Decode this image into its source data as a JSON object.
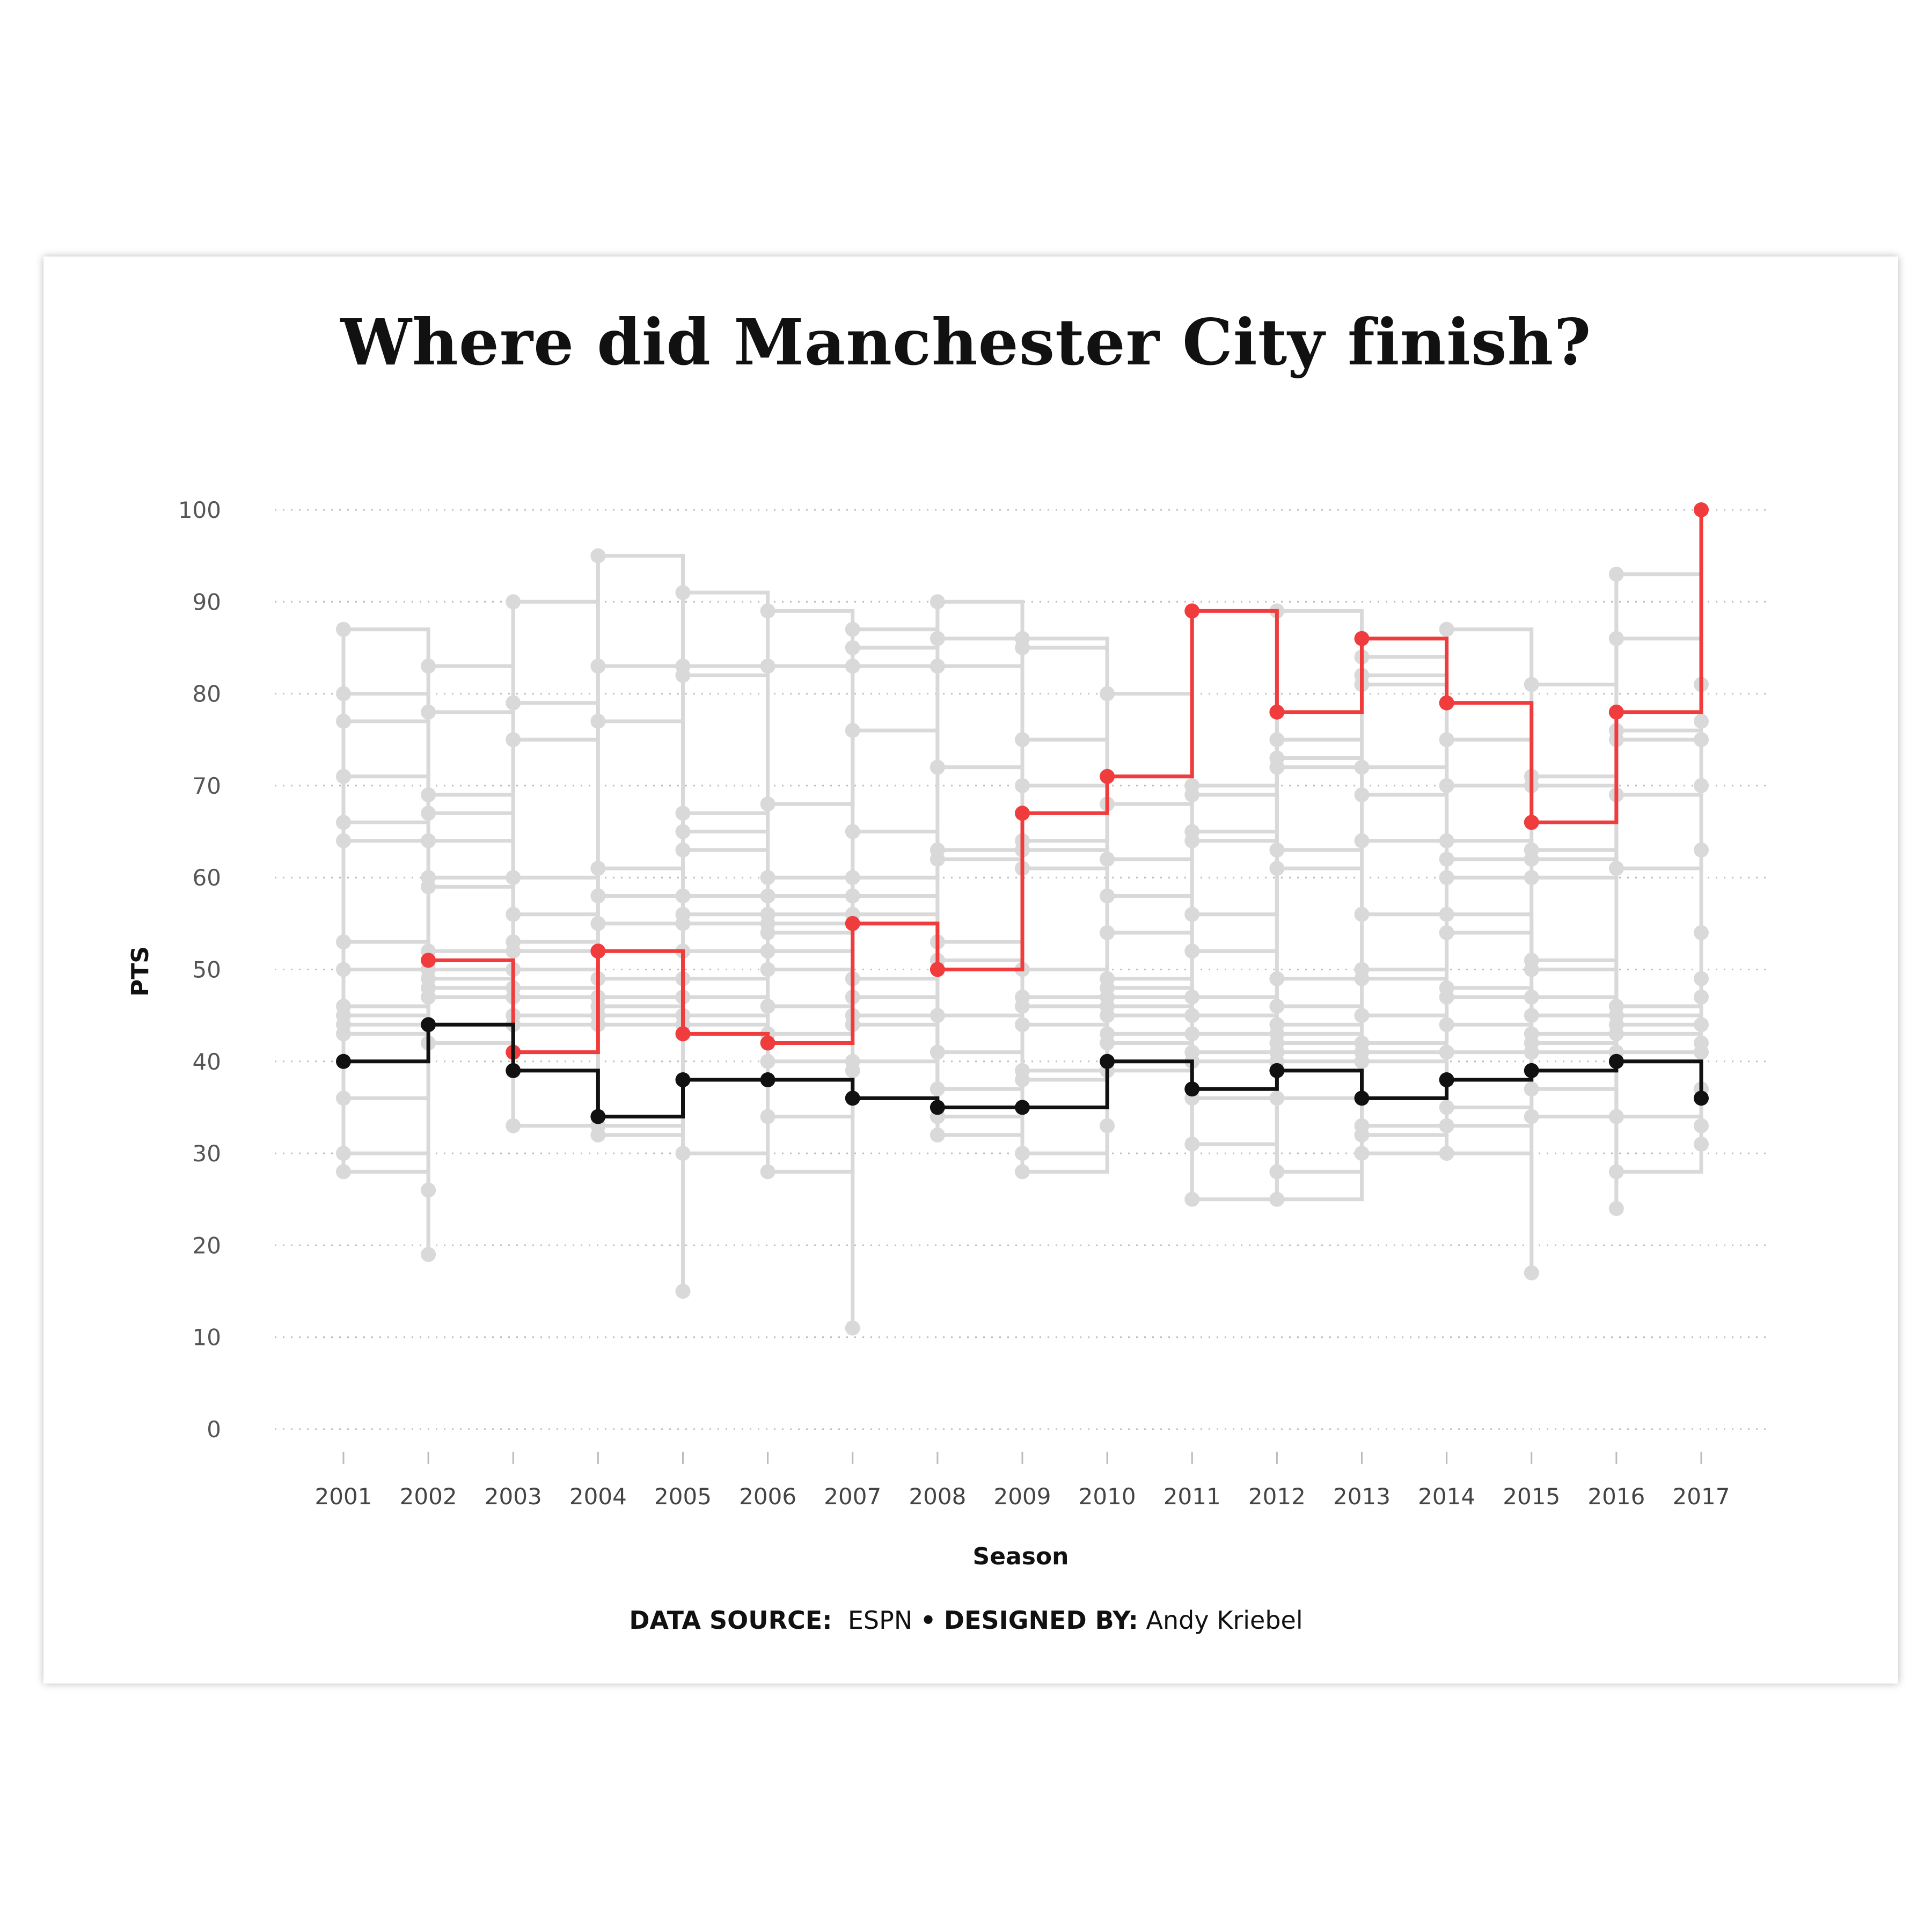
{
  "footer": {
    "source_label": "DATA SOURCE:",
    "source_value": "ESPN",
    "separator": "•",
    "designer_label": "DESIGNED BY:",
    "designer_value": "Andy Kriebel"
  },
  "chart_data": {
    "type": "line",
    "step": true,
    "title": "Where did Manchester City finish?",
    "xlabel": "Season",
    "ylabel": "PTS",
    "ylim": [
      0,
      100
    ],
    "yticks": [
      0,
      10,
      20,
      30,
      40,
      50,
      60,
      70,
      80,
      90,
      100
    ],
    "grid": "horizontal-dotted",
    "x": [
      2001,
      2002,
      2003,
      2004,
      2005,
      2006,
      2007,
      2008,
      2009,
      2010,
      2011,
      2012,
      2013,
      2014,
      2015,
      2016,
      2017
    ],
    "colors": {
      "highlight": "#f03c3c",
      "baseline": "#111111",
      "other": "#d9d9d9"
    },
    "series": [
      {
        "values": [
          null,
          51,
          41,
          52,
          43,
          42,
          55,
          50,
          67,
          71,
          89,
          78,
          86,
          79,
          66,
          78,
          100
        ],
        "color": "#f03c3c"
      },
      {
        "values": [
          40,
          44,
          39,
          34,
          38,
          38,
          36,
          35,
          35,
          40,
          37,
          39,
          36,
          38,
          39,
          40,
          36
        ],
        "color": "#111111"
      }
    ],
    "other_points": [
      [
        87,
        80,
        77,
        71,
        66,
        64,
        53,
        50,
        46,
        45,
        44,
        43,
        36,
        30,
        28
      ],
      [
        83,
        78,
        69,
        67,
        64,
        60,
        59,
        52,
        50,
        49,
        48,
        47,
        42,
        26,
        19
      ],
      [
        90,
        79,
        75,
        60,
        56,
        53,
        52,
        50,
        48,
        47,
        45,
        44,
        33
      ],
      [
        95,
        83,
        77,
        61,
        58,
        55,
        52,
        49,
        47,
        46,
        45,
        44,
        33,
        32
      ],
      [
        91,
        83,
        82,
        67,
        65,
        63,
        58,
        56,
        55,
        52,
        49,
        47,
        45,
        44,
        30,
        15
      ],
      [
        89,
        83,
        68,
        60,
        58,
        56,
        55,
        54,
        52,
        50,
        46,
        43,
        40,
        34,
        28
      ],
      [
        87,
        85,
        83,
        76,
        65,
        60,
        58,
        56,
        49,
        47,
        45,
        44,
        40,
        39,
        11
      ],
      [
        90,
        86,
        83,
        72,
        63,
        62,
        53,
        51,
        45,
        41,
        37,
        34,
        32
      ],
      [
        86,
        85,
        75,
        70,
        64,
        63,
        61,
        50,
        47,
        46,
        44,
        39,
        38,
        30,
        28
      ],
      [
        80,
        68,
        62,
        58,
        54,
        49,
        48,
        47,
        46,
        45,
        43,
        42,
        40,
        39,
        33
      ],
      [
        70,
        69,
        65,
        64,
        56,
        52,
        47,
        45,
        43,
        41,
        40,
        36,
        31,
        25
      ],
      [
        89,
        75,
        73,
        72,
        63,
        61,
        49,
        46,
        44,
        43,
        42,
        41,
        40,
        36,
        28,
        25
      ],
      [
        84,
        82,
        81,
        72,
        69,
        64,
        56,
        50,
        49,
        45,
        42,
        41,
        40,
        33,
        32,
        30
      ],
      [
        87,
        75,
        70,
        64,
        62,
        60,
        56,
        54,
        48,
        47,
        44,
        41,
        38,
        35,
        33,
        30
      ],
      [
        81,
        71,
        70,
        63,
        62,
        60,
        51,
        50,
        47,
        45,
        43,
        42,
        41,
        37,
        34,
        17
      ],
      [
        93,
        86,
        76,
        75,
        69,
        61,
        46,
        45,
        44,
        43,
        41,
        40,
        34,
        28,
        24
      ],
      [
        81,
        77,
        75,
        70,
        63,
        54,
        49,
        47,
        44,
        42,
        41,
        37,
        33,
        31
      ]
    ]
  }
}
